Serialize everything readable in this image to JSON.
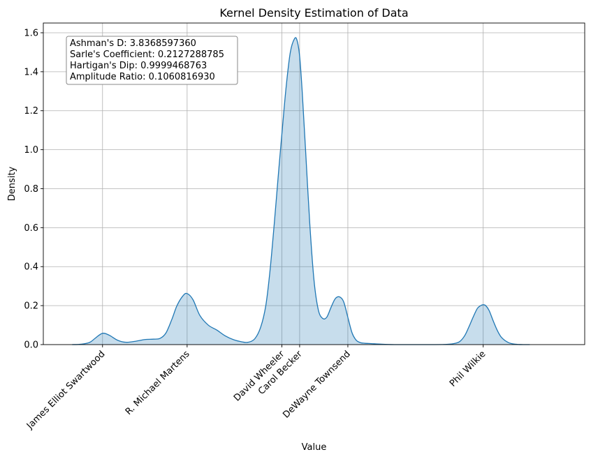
{
  "chart_data": {
    "type": "area",
    "title": "Kernel Density Estimation of Data",
    "xlabel": "Value",
    "ylabel": "Density",
    "ylim": [
      0,
      1.65
    ],
    "xlim": [
      -0.7,
      5.7
    ],
    "grid": true,
    "y_ticks": [
      0.0,
      0.2,
      0.4,
      0.6,
      0.8,
      1.0,
      1.2,
      1.4,
      1.6
    ],
    "y_tick_labels": [
      "0.0",
      "0.2",
      "0.4",
      "0.6",
      "0.8",
      "1.0",
      "1.2",
      "1.4",
      "1.6"
    ],
    "x_ticks": [
      {
        "label": "James Elliot Swartwood",
        "value": 0.0
      },
      {
        "label": "R. Michael Martens",
        "value": 1.0
      },
      {
        "label": "David Wheeler",
        "value": 2.12
      },
      {
        "label": "Carol Becker",
        "value": 2.33
      },
      {
        "label": "DeWayne Townsend",
        "value": 2.9
      },
      {
        "label": "Phil Wilkie",
        "value": 4.5
      }
    ],
    "series": [
      {
        "color": "#1f77b4",
        "fill_color": "#1f77b4",
        "x": [
          -0.36,
          -0.25,
          -0.15,
          -0.08,
          0.0,
          0.08,
          0.18,
          0.28,
          0.4,
          0.5,
          0.6,
          0.68,
          0.75,
          0.82,
          0.88,
          0.95,
          1.0,
          1.07,
          1.15,
          1.25,
          1.35,
          1.45,
          1.55,
          1.65,
          1.72,
          1.8,
          1.87,
          1.93,
          1.98,
          2.03,
          2.08,
          2.12,
          2.17,
          2.22,
          2.27,
          2.3,
          2.33,
          2.36,
          2.4,
          2.45,
          2.5,
          2.55,
          2.6,
          2.65,
          2.7,
          2.75,
          2.8,
          2.85,
          2.9,
          2.95,
          3.0,
          3.05,
          3.1,
          3.18,
          3.3,
          3.45,
          3.6,
          3.75,
          3.9,
          4.05,
          4.15,
          4.22,
          4.28,
          4.33,
          4.38,
          4.43,
          4.47,
          4.5,
          4.53,
          4.57,
          4.62,
          4.67,
          4.72,
          4.8,
          4.88,
          4.97,
          5.05
        ],
        "y": [
          0.0,
          0.002,
          0.012,
          0.035,
          0.058,
          0.048,
          0.022,
          0.012,
          0.018,
          0.026,
          0.028,
          0.032,
          0.06,
          0.13,
          0.2,
          0.25,
          0.262,
          0.23,
          0.15,
          0.1,
          0.075,
          0.045,
          0.025,
          0.014,
          0.012,
          0.03,
          0.09,
          0.2,
          0.38,
          0.62,
          0.88,
          1.08,
          1.32,
          1.5,
          1.57,
          1.56,
          1.48,
          1.3,
          1.0,
          0.62,
          0.33,
          0.18,
          0.135,
          0.14,
          0.19,
          0.235,
          0.245,
          0.22,
          0.14,
          0.06,
          0.022,
          0.01,
          0.007,
          0.005,
          0.002,
          0.0,
          0.0,
          0.0,
          0.0,
          0.001,
          0.005,
          0.015,
          0.045,
          0.09,
          0.14,
          0.185,
          0.2,
          0.205,
          0.2,
          0.175,
          0.12,
          0.07,
          0.035,
          0.01,
          0.002,
          0.0,
          0.0
        ]
      }
    ],
    "annotation_lines": [
      "Ashman's D: 3.8368597360",
      "Sarle's Coefficient: 0.2127288785",
      "Hartigan's Dip: 0.9999468763",
      "Amplitude Ratio: 0.1060816930"
    ]
  }
}
